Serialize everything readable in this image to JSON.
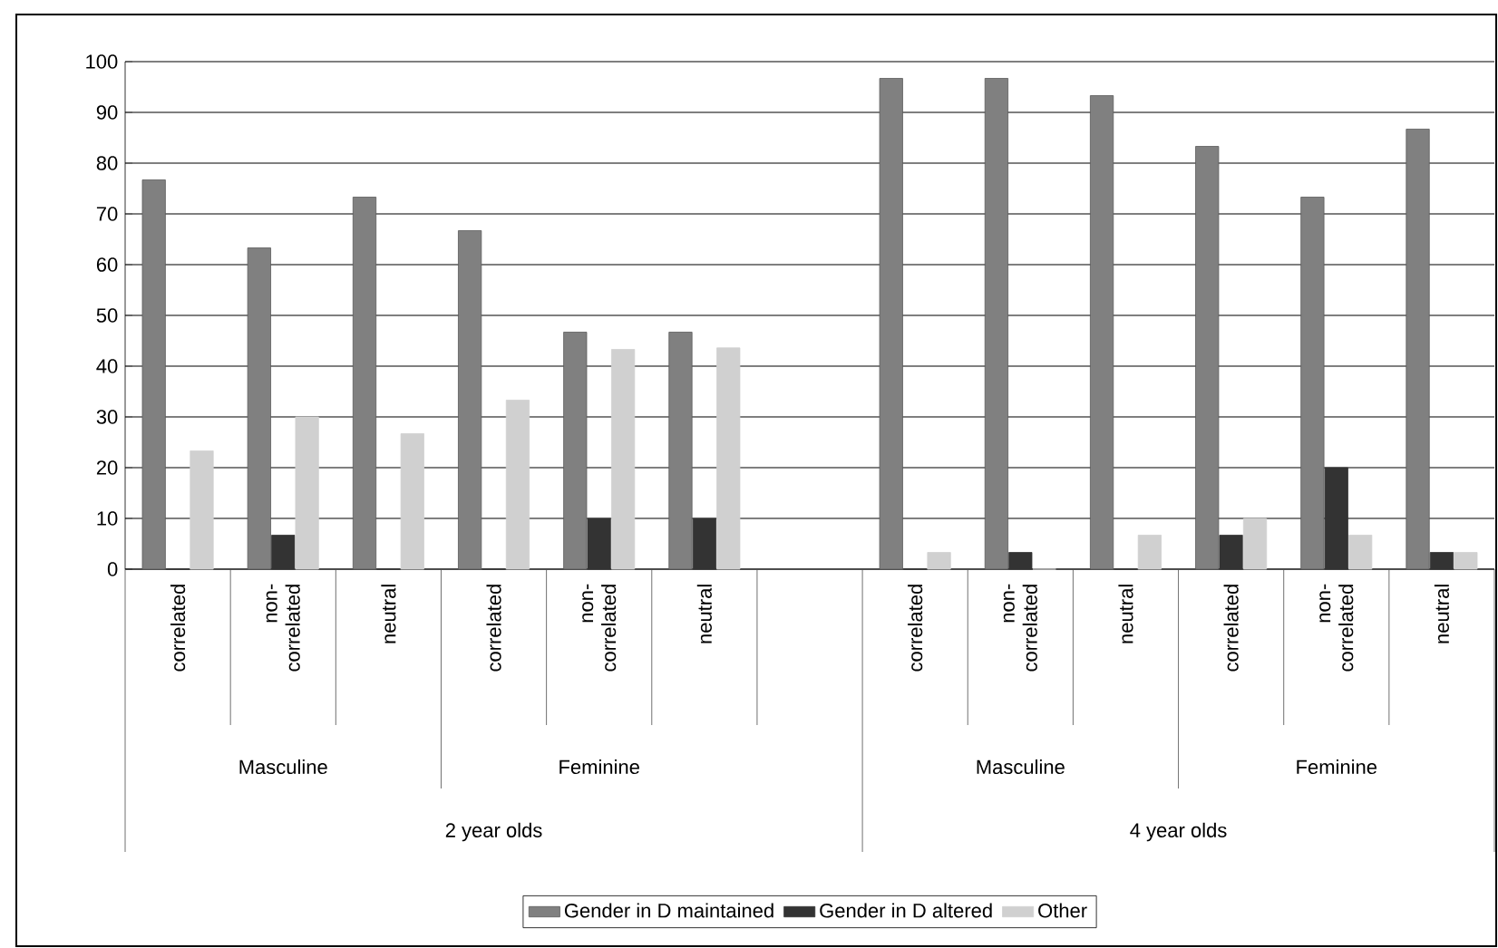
{
  "chart_data": {
    "type": "bar",
    "categories": [
      "correlated",
      "non-correlated",
      "neutral",
      "correlated",
      "non-correlated",
      "neutral",
      null,
      "correlated",
      "non-correlated",
      "neutral",
      "correlated",
      "non-correlated",
      "neutral"
    ],
    "series": [
      {
        "name": "Gender in D maintained",
        "color": "#808080",
        "values": [
          76.7,
          63.3,
          73.3,
          66.7,
          46.7,
          46.7,
          null,
          96.7,
          96.7,
          93.3,
          83.3,
          73.3,
          86.7
        ]
      },
      {
        "name": "Gender in D altered",
        "color": "#333333",
        "values": [
          0,
          6.7,
          0,
          0,
          10,
          10,
          null,
          0,
          3.3,
          0,
          6.7,
          20,
          3.3
        ]
      },
      {
        "name": "Other",
        "color": "#d0d0d0",
        "values": [
          23.3,
          30,
          26.7,
          33.3,
          43.3,
          43.6,
          null,
          3.3,
          0,
          6.7,
          10,
          6.7,
          3.3
        ]
      }
    ],
    "annotations": [
      "Masculine",
      "Feminine",
      "Masculine",
      "Feminine",
      "2 year olds",
      "4 year olds"
    ],
    "ylim": [
      0,
      100
    ],
    "yticks": [
      0,
      10,
      20,
      30,
      40,
      50,
      60,
      70,
      80,
      90,
      100
    ],
    "grid": "y",
    "legend": "bottom"
  }
}
